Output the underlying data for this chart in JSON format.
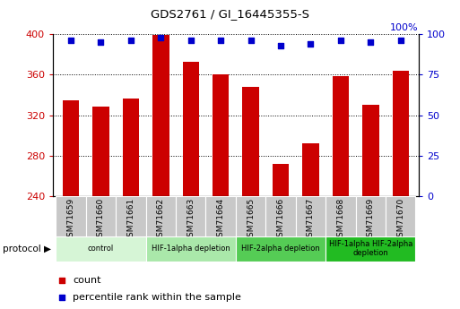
{
  "title": "GDS2761 / GI_16445355-S",
  "samples": [
    "GSM71659",
    "GSM71660",
    "GSM71661",
    "GSM71662",
    "GSM71663",
    "GSM71664",
    "GSM71665",
    "GSM71666",
    "GSM71667",
    "GSM71668",
    "GSM71669",
    "GSM71670"
  ],
  "counts": [
    335,
    328,
    336,
    399,
    373,
    360,
    348,
    272,
    292,
    358,
    330,
    364
  ],
  "percentile_ranks": [
    96,
    95,
    96,
    98,
    96,
    96,
    96,
    93,
    94,
    96,
    95,
    96
  ],
  "ylim_left": [
    240,
    400
  ],
  "ylim_right": [
    0,
    100
  ],
  "yticks_left": [
    240,
    280,
    320,
    360,
    400
  ],
  "yticks_right": [
    0,
    25,
    50,
    75,
    100
  ],
  "bar_color": "#cc0000",
  "dot_color": "#0000cc",
  "grid_color": "#000000",
  "protocol_groups": [
    {
      "label": "control",
      "spans": [
        0,
        1,
        2
      ],
      "color": "#d6f5d6"
    },
    {
      "label": "HIF-1alpha depletion",
      "spans": [
        3,
        4,
        5
      ],
      "color": "#aae8aa"
    },
    {
      "label": "HIF-2alpha depletion",
      "spans": [
        6,
        7,
        8
      ],
      "color": "#55cc55"
    },
    {
      "label": "HIF-1alpha HIF-2alpha\ndepletion",
      "spans": [
        9,
        10,
        11
      ],
      "color": "#22bb22"
    }
  ],
  "legend_count_label": "count",
  "legend_pct_label": "percentile rank within the sample",
  "protocol_label": "protocol",
  "bar_width": 0.55,
  "tick_color_left": "#cc0000",
  "tick_color_right": "#0000cc",
  "sample_box_color": "#c8c8c8",
  "right_axis_label": "100%"
}
